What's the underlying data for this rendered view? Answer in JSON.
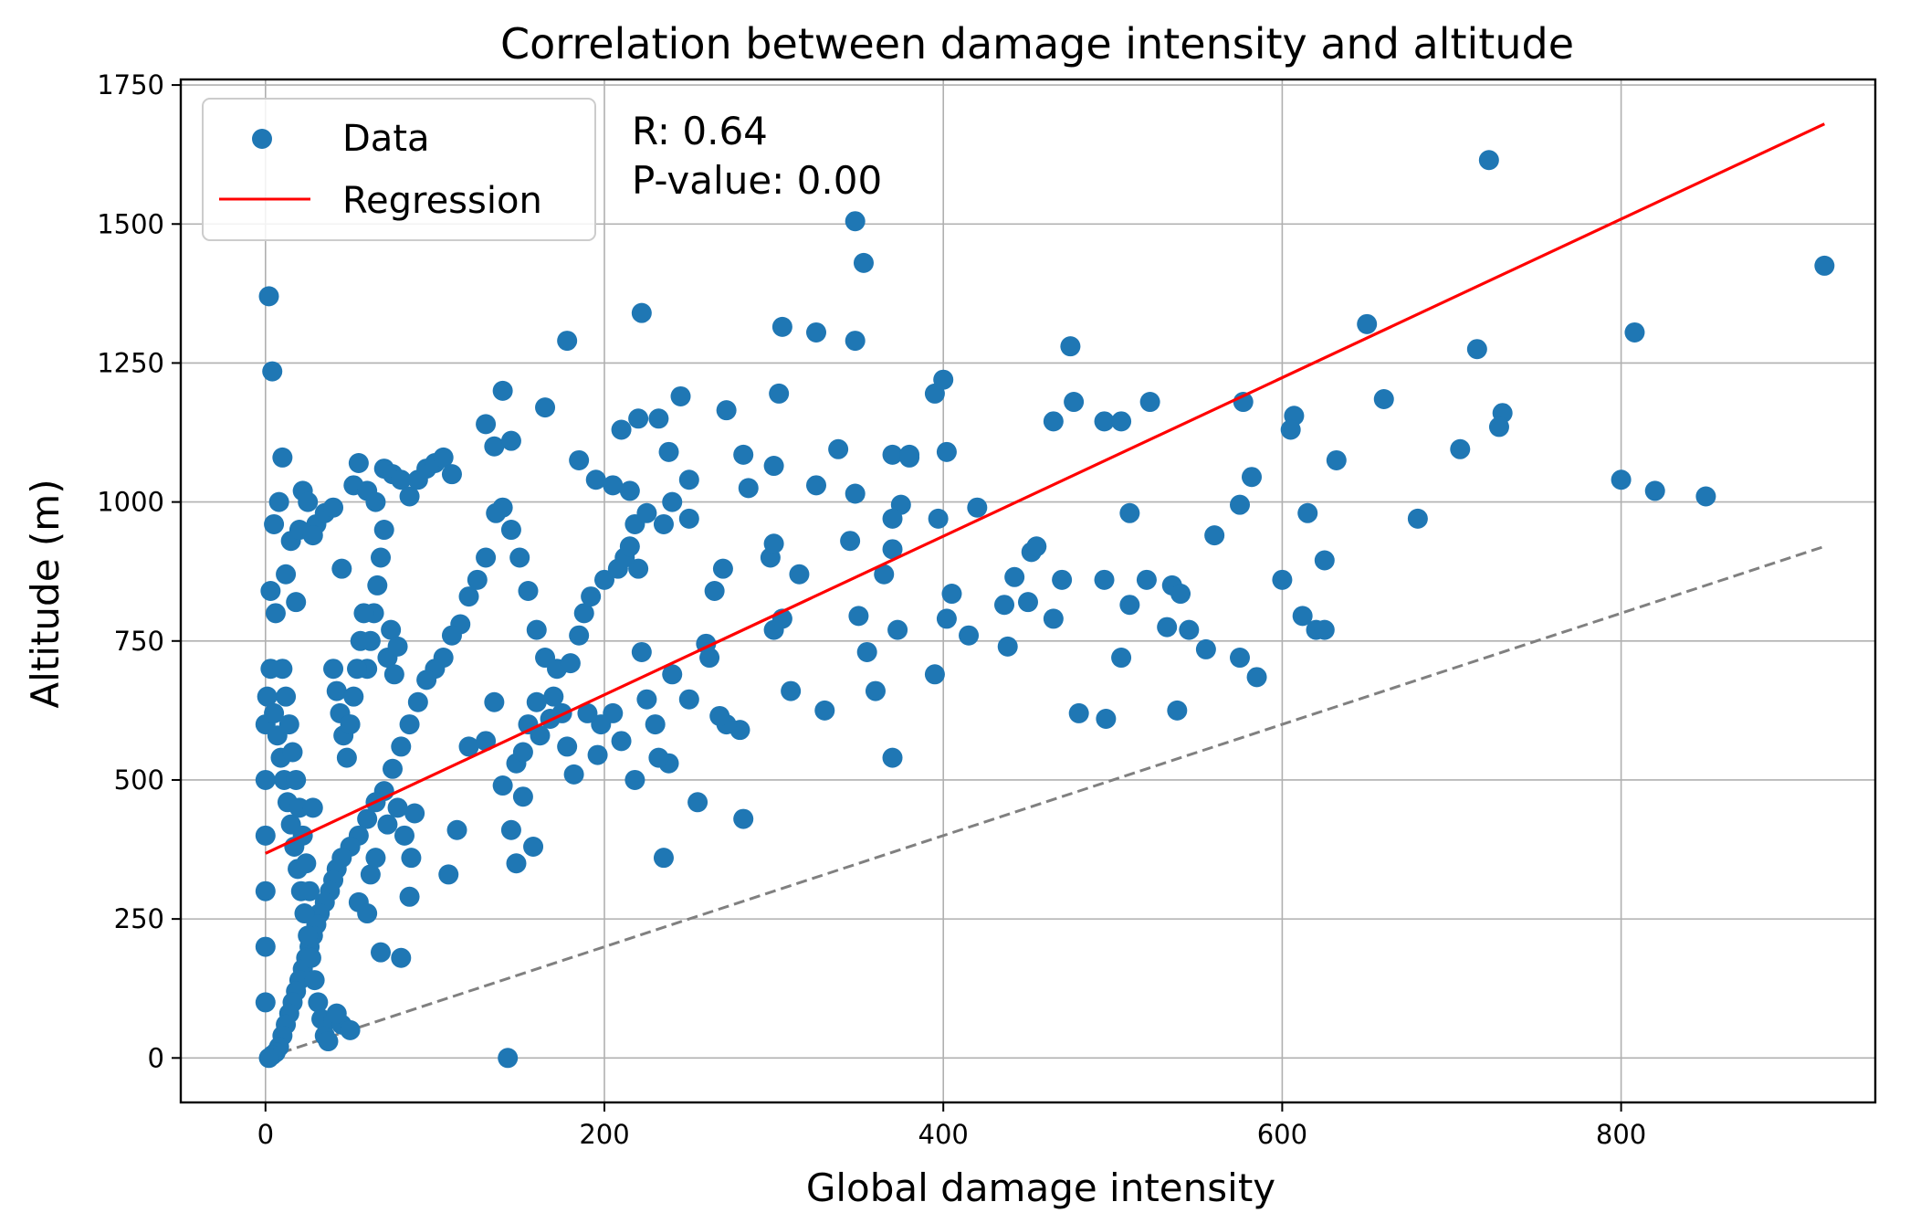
{
  "chart_data": {
    "type": "scatter",
    "title": "Correlation between damage intensity and altitude",
    "xlabel": "Global damage intensity",
    "ylabel": "Altitude (m)",
    "xlim": [
      -50,
      950
    ],
    "ylim": [
      -80,
      1760
    ],
    "xticks": [
      0,
      200,
      400,
      600,
      800
    ],
    "yticks": [
      0,
      250,
      500,
      750,
      1000,
      1250,
      1500,
      1750
    ],
    "grid": true,
    "legend": {
      "placement": "top-left",
      "entries": [
        {
          "label": "Data",
          "marker": "circle",
          "color": "#1f77b4"
        },
        {
          "label": "Regression",
          "marker": "line",
          "color": "#ff0000"
        }
      ]
    },
    "annotations": {
      "r_text": "R: 0.64",
      "p_text": "P-value: 0.00"
    },
    "colors": {
      "points": "#1f77b4",
      "regression": "#ff0000",
      "reference": "#808080"
    },
    "regression_line": {
      "x": [
        0,
        920
      ],
      "y": [
        368,
        1680
      ]
    },
    "reference_line": {
      "x": [
        0,
        920
      ],
      "y": [
        0,
        920
      ],
      "style": "dashed"
    },
    "series": [
      {
        "name": "Data",
        "points": [
          [
            2,
            1370
          ],
          [
            4,
            1235
          ],
          [
            10,
            1080
          ],
          [
            5,
            960
          ],
          [
            8,
            1000
          ],
          [
            3,
            840
          ],
          [
            6,
            800
          ],
          [
            12,
            870
          ],
          [
            15,
            930
          ],
          [
            18,
            820
          ],
          [
            22,
            1020
          ],
          [
            25,
            1000
          ],
          [
            30,
            960
          ],
          [
            35,
            980
          ],
          [
            40,
            990
          ],
          [
            20,
            950
          ],
          [
            28,
            940
          ],
          [
            45,
            880
          ],
          [
            55,
            1070
          ],
          [
            52,
            1030
          ],
          [
            60,
            1020
          ],
          [
            65,
            1000
          ],
          [
            70,
            1060
          ],
          [
            75,
            1050
          ],
          [
            80,
            1040
          ],
          [
            90,
            1040
          ],
          [
            95,
            1060
          ],
          [
            100,
            1070
          ],
          [
            105,
            1080
          ],
          [
            85,
            1010
          ],
          [
            110,
            1050
          ],
          [
            130,
            1140
          ],
          [
            135,
            1100
          ],
          [
            140,
            1200
          ],
          [
            145,
            1110
          ],
          [
            165,
            1170
          ],
          [
            178,
            1290
          ],
          [
            185,
            1075
          ],
          [
            195,
            1040
          ],
          [
            205,
            1030
          ],
          [
            215,
            1020
          ],
          [
            210,
            1130
          ],
          [
            220,
            1150
          ],
          [
            232,
            1150
          ],
          [
            222,
            1340
          ],
          [
            238,
            1090
          ],
          [
            245,
            1190
          ],
          [
            250,
            1040
          ],
          [
            272,
            1165
          ],
          [
            282,
            1085
          ],
          [
            285,
            1025
          ],
          [
            300,
            1065
          ],
          [
            303,
            1195
          ],
          [
            305,
            1315
          ],
          [
            325,
            1305
          ],
          [
            325,
            1030
          ],
          [
            338,
            1095
          ],
          [
            348,
            1505
          ],
          [
            348,
            1290
          ],
          [
            353,
            1430
          ],
          [
            348,
            1015
          ],
          [
            370,
            1085
          ],
          [
            380,
            1080
          ],
          [
            395,
            1195
          ],
          [
            400,
            1220
          ],
          [
            402,
            1090
          ],
          [
            420,
            990
          ],
          [
            475,
            1280
          ],
          [
            477,
            1180
          ],
          [
            465,
            1145
          ],
          [
            495,
            1145
          ],
          [
            505,
            1145
          ],
          [
            522,
            1180
          ],
          [
            577,
            1180
          ],
          [
            582,
            1045
          ],
          [
            650,
            1320
          ],
          [
            660,
            1185
          ],
          [
            715,
            1275
          ],
          [
            722,
            1615
          ],
          [
            730,
            1160
          ],
          [
            728,
            1135
          ],
          [
            607,
            1155
          ],
          [
            605,
            1130
          ],
          [
            632,
            1075
          ],
          [
            705,
            1095
          ],
          [
            800,
            1040
          ],
          [
            808,
            1305
          ],
          [
            820,
            1020
          ],
          [
            850,
            1010
          ],
          [
            920,
            1425
          ],
          [
            510,
            980
          ],
          [
            545,
            770
          ],
          [
            560,
            940
          ],
          [
            575,
            995
          ],
          [
            600,
            860
          ],
          [
            612,
            795
          ],
          [
            615,
            980
          ],
          [
            620,
            770
          ],
          [
            625,
            895
          ],
          [
            625,
            770
          ],
          [
            575,
            720
          ],
          [
            585,
            685
          ],
          [
            680,
            970
          ],
          [
            480,
            620
          ],
          [
            496,
            610
          ],
          [
            538,
            625
          ],
          [
            532,
            775
          ],
          [
            535,
            850
          ],
          [
            540,
            835
          ],
          [
            505,
            720
          ],
          [
            555,
            735
          ],
          [
            438,
            740
          ],
          [
            436,
            815
          ],
          [
            442,
            865
          ],
          [
            450,
            820
          ],
          [
            452,
            910
          ],
          [
            455,
            920
          ],
          [
            470,
            860
          ],
          [
            465,
            790
          ],
          [
            495,
            860
          ],
          [
            510,
            815
          ],
          [
            520,
            860
          ],
          [
            395,
            690
          ],
          [
            397,
            970
          ],
          [
            402,
            790
          ],
          [
            405,
            835
          ],
          [
            415,
            760
          ],
          [
            360,
            660
          ],
          [
            370,
            540
          ],
          [
            373,
            770
          ],
          [
            365,
            870
          ],
          [
            370,
            915
          ],
          [
            375,
            995
          ],
          [
            380,
            1085
          ],
          [
            300,
            770
          ],
          [
            305,
            790
          ],
          [
            298,
            900
          ],
          [
            300,
            925
          ],
          [
            310,
            660
          ],
          [
            315,
            870
          ],
          [
            330,
            625
          ],
          [
            345,
            930
          ],
          [
            350,
            795
          ],
          [
            355,
            730
          ],
          [
            370,
            970
          ],
          [
            280,
            590
          ],
          [
            282,
            430
          ],
          [
            272,
            600
          ],
          [
            268,
            615
          ],
          [
            260,
            745
          ],
          [
            250,
            645
          ],
          [
            255,
            460
          ],
          [
            262,
            720
          ],
          [
            265,
            840
          ],
          [
            270,
            880
          ],
          [
            240,
            690
          ],
          [
            238,
            530
          ],
          [
            232,
            540
          ],
          [
            235,
            360
          ],
          [
            230,
            600
          ],
          [
            225,
            645
          ],
          [
            222,
            730
          ],
          [
            220,
            880
          ],
          [
            218,
            500
          ],
          [
            210,
            570
          ],
          [
            205,
            620
          ],
          [
            198,
            600
          ],
          [
            196,
            545
          ],
          [
            190,
            620
          ],
          [
            182,
            510
          ],
          [
            178,
            560
          ],
          [
            175,
            620
          ],
          [
            170,
            650
          ],
          [
            165,
            720
          ],
          [
            160,
            770
          ],
          [
            155,
            840
          ],
          [
            150,
            900
          ],
          [
            145,
            950
          ],
          [
            140,
            990
          ],
          [
            136,
            980
          ],
          [
            130,
            900
          ],
          [
            125,
            860
          ],
          [
            120,
            830
          ],
          [
            115,
            780
          ],
          [
            110,
            760
          ],
          [
            105,
            720
          ],
          [
            100,
            700
          ],
          [
            95,
            680
          ],
          [
            90,
            640
          ],
          [
            85,
            600
          ],
          [
            80,
            560
          ],
          [
            75,
            520
          ],
          [
            70,
            480
          ],
          [
            65,
            460
          ],
          [
            60,
            430
          ],
          [
            55,
            400
          ],
          [
            50,
            380
          ],
          [
            45,
            360
          ],
          [
            42,
            340
          ],
          [
            40,
            320
          ],
          [
            38,
            300
          ],
          [
            35,
            280
          ],
          [
            32,
            260
          ],
          [
            30,
            240
          ],
          [
            28,
            220
          ],
          [
            26,
            200
          ],
          [
            24,
            180
          ],
          [
            22,
            160
          ],
          [
            20,
            140
          ],
          [
            18,
            120
          ],
          [
            16,
            100
          ],
          [
            14,
            80
          ],
          [
            12,
            60
          ],
          [
            10,
            40
          ],
          [
            8,
            20
          ],
          [
            6,
            10
          ],
          [
            4,
            5
          ],
          [
            2,
            0
          ],
          [
            0,
            100
          ],
          [
            0,
            200
          ],
          [
            0,
            300
          ],
          [
            0,
            400
          ],
          [
            0,
            500
          ],
          [
            0,
            600
          ],
          [
            1,
            650
          ],
          [
            3,
            700
          ],
          [
            5,
            620
          ],
          [
            7,
            580
          ],
          [
            9,
            540
          ],
          [
            11,
            500
          ],
          [
            13,
            460
          ],
          [
            15,
            420
          ],
          [
            17,
            380
          ],
          [
            19,
            340
          ],
          [
            21,
            300
          ],
          [
            23,
            260
          ],
          [
            25,
            220
          ],
          [
            27,
            180
          ],
          [
            29,
            140
          ],
          [
            31,
            100
          ],
          [
            33,
            70
          ],
          [
            35,
            40
          ],
          [
            37,
            30
          ],
          [
            40,
            70
          ],
          [
            45,
            60
          ],
          [
            42,
            80
          ],
          [
            50,
            50
          ],
          [
            55,
            280
          ],
          [
            60,
            260
          ],
          [
            62,
            330
          ],
          [
            65,
            360
          ],
          [
            68,
            190
          ],
          [
            72,
            420
          ],
          [
            78,
            450
          ],
          [
            80,
            180
          ],
          [
            82,
            400
          ],
          [
            85,
            290
          ],
          [
            86,
            360
          ],
          [
            88,
            440
          ],
          [
            108,
            330
          ],
          [
            113,
            410
          ],
          [
            120,
            560
          ],
          [
            130,
            570
          ],
          [
            135,
            640
          ],
          [
            140,
            490
          ],
          [
            145,
            410
          ],
          [
            148,
            350
          ],
          [
            152,
            470
          ],
          [
            158,
            380
          ],
          [
            143,
            0
          ],
          [
            148,
            530
          ],
          [
            152,
            550
          ],
          [
            155,
            600
          ],
          [
            160,
            640
          ],
          [
            162,
            580
          ],
          [
            168,
            610
          ],
          [
            172,
            700
          ],
          [
            180,
            710
          ],
          [
            185,
            760
          ],
          [
            188,
            800
          ],
          [
            192,
            830
          ],
          [
            200,
            860
          ],
          [
            208,
            880
          ],
          [
            212,
            900
          ],
          [
            215,
            920
          ],
          [
            218,
            960
          ],
          [
            225,
            980
          ],
          [
            235,
            960
          ],
          [
            240,
            1000
          ],
          [
            250,
            970
          ],
          [
            60,
            700
          ],
          [
            62,
            750
          ],
          [
            64,
            800
          ],
          [
            66,
            850
          ],
          [
            68,
            900
          ],
          [
            70,
            950
          ],
          [
            72,
            720
          ],
          [
            74,
            770
          ],
          [
            76,
            690
          ],
          [
            78,
            740
          ],
          [
            40,
            700
          ],
          [
            42,
            660
          ],
          [
            44,
            620
          ],
          [
            46,
            580
          ],
          [
            48,
            540
          ],
          [
            50,
            600
          ],
          [
            52,
            650
          ],
          [
            54,
            700
          ],
          [
            56,
            750
          ],
          [
            58,
            800
          ],
          [
            10,
            700
          ],
          [
            12,
            650
          ],
          [
            14,
            600
          ],
          [
            16,
            550
          ],
          [
            18,
            500
          ],
          [
            20,
            450
          ],
          [
            22,
            400
          ],
          [
            24,
            350
          ],
          [
            26,
            300
          ],
          [
            28,
            450
          ]
        ]
      }
    ]
  }
}
